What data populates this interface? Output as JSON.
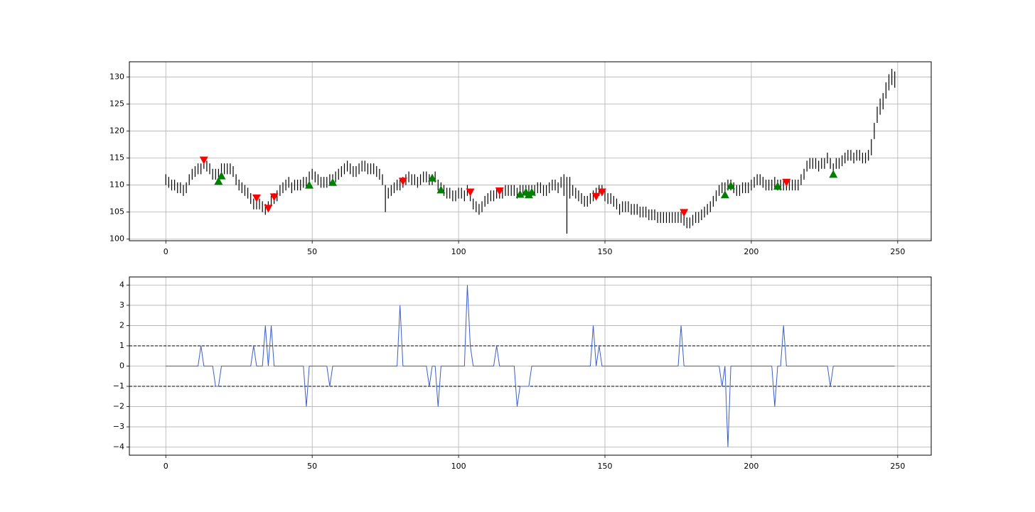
{
  "chart_data": [
    {
      "type": "ohlc",
      "grid": true,
      "color": "#000000",
      "xlim": [
        -12.45,
        261.45
      ],
      "ylim": [
        99.7,
        132.8
      ],
      "xticks": [
        0,
        50,
        100,
        150,
        200,
        250
      ],
      "yticks": [
        100,
        105,
        110,
        115,
        120,
        125,
        130
      ],
      "high": [
        112,
        111.5,
        111,
        111,
        110.5,
        110.5,
        110,
        110.5,
        112,
        113,
        113.5,
        114,
        114,
        115,
        114.5,
        114,
        113,
        113,
        113,
        114,
        114,
        114,
        114,
        113.5,
        112,
        111,
        110.5,
        110,
        109.5,
        108.5,
        107.5,
        107.5,
        107.5,
        107,
        106.5,
        107,
        108,
        108.5,
        109,
        110,
        110.5,
        111,
        111.5,
        110.5,
        111,
        111,
        111,
        111.5,
        111.5,
        112.5,
        113,
        112.5,
        112,
        111.5,
        111.5,
        111.5,
        112,
        112,
        112.5,
        113,
        113.5,
        114,
        114.5,
        114,
        113.5,
        113.5,
        114,
        114.5,
        114.5,
        114,
        114,
        114,
        113.5,
        113,
        112,
        110,
        109.5,
        110,
        110.5,
        111,
        111,
        111.5,
        112,
        112.5,
        112,
        112,
        111.5,
        112,
        112.5,
        112.5,
        112,
        112,
        112.5,
        111,
        110.5,
        110,
        109.5,
        109.5,
        109,
        109,
        109.5,
        109.5,
        109,
        110,
        109,
        107.5,
        107,
        106.5,
        107,
        108,
        108.5,
        109,
        109,
        109.5,
        109.5,
        109.5,
        110,
        110,
        110,
        110,
        109.5,
        110,
        110,
        110,
        110,
        110,
        110,
        110.5,
        110.5,
        110,
        110,
        110.5,
        111,
        111,
        110.5,
        111.5,
        112,
        111.5,
        111.5,
        110,
        109.5,
        109,
        108.5,
        108,
        108,
        108.5,
        109,
        109.5,
        110,
        110,
        109,
        108.5,
        108.5,
        108,
        107.5,
        106.5,
        107,
        107,
        107,
        106.5,
        106.5,
        106.5,
        106,
        106,
        106,
        105.5,
        105.5,
        105.5,
        105,
        105,
        105,
        105,
        105,
        105,
        105,
        105,
        105,
        104.5,
        104,
        104,
        104.5,
        105,
        105,
        105.5,
        106,
        106.5,
        107,
        108,
        109,
        110,
        110.5,
        110.5,
        111,
        111,
        110.5,
        110,
        110,
        110.5,
        110.5,
        110.5,
        111,
        111.5,
        112,
        112,
        111.5,
        111,
        111,
        111,
        111.5,
        111,
        111,
        111,
        111,
        111,
        111,
        111,
        111,
        112,
        113,
        114.5,
        115,
        115,
        115,
        114.5,
        115,
        115,
        116,
        115,
        114,
        115,
        115,
        115.5,
        116,
        116.5,
        116.5,
        116,
        116.5,
        116.5,
        116,
        116,
        116.5,
        118.5,
        121.5,
        124.5,
        126,
        127,
        129,
        130.5,
        131.5,
        131
      ],
      "low": [
        110,
        109.5,
        109,
        109,
        108.5,
        108.5,
        108,
        108.5,
        110,
        111,
        111.5,
        112,
        112,
        113,
        112.5,
        112,
        111,
        111,
        111,
        112,
        112,
        112,
        112,
        111.5,
        110,
        109,
        108.5,
        108,
        107.5,
        106.5,
        105.5,
        105.5,
        105.5,
        105,
        104.5,
        105,
        106,
        106.5,
        107,
        108,
        108.5,
        109,
        109.5,
        108.5,
        109,
        109,
        109,
        109.5,
        109.5,
        110.5,
        111,
        110.5,
        110,
        109.5,
        109.5,
        109.5,
        110,
        110,
        110.5,
        111,
        111.5,
        112,
        112.5,
        112,
        111.5,
        111.5,
        112,
        112.5,
        112.5,
        112,
        112,
        112,
        111.5,
        111,
        110,
        105,
        107.5,
        108,
        108.5,
        109,
        109,
        109.5,
        110,
        110.5,
        110,
        110,
        109.5,
        110,
        110.5,
        110.5,
        110,
        110,
        110.5,
        109,
        108.5,
        108,
        107.5,
        107.5,
        107,
        107,
        107.5,
        107.5,
        107,
        108,
        107,
        105.5,
        105,
        104.5,
        105,
        106,
        106.5,
        107,
        107,
        107.5,
        107.5,
        107.5,
        108,
        108,
        108,
        108,
        107.5,
        108,
        108,
        108,
        108,
        108,
        108,
        108.5,
        108.5,
        108,
        108,
        108.5,
        109,
        109,
        108.5,
        109.5,
        108,
        101,
        107.5,
        108,
        107.5,
        107,
        106.5,
        106,
        106,
        106.5,
        107,
        107.5,
        108,
        108,
        107,
        106.5,
        106.5,
        106,
        105.5,
        104.5,
        105,
        105,
        105,
        104.5,
        104.5,
        104.5,
        104,
        104,
        104,
        103.5,
        103.5,
        103.5,
        103,
        103,
        103,
        103,
        103,
        103,
        103,
        103,
        103,
        102.5,
        102,
        102,
        102.5,
        103,
        103,
        103.5,
        104,
        104.5,
        105,
        106,
        107,
        108,
        108.5,
        108.5,
        109,
        109,
        108.5,
        108,
        108,
        108.5,
        108.5,
        108.5,
        109,
        109.5,
        110,
        110,
        109.5,
        109,
        109,
        109,
        109.5,
        109,
        109,
        109,
        109,
        109,
        109,
        109,
        109,
        110,
        111,
        112.5,
        113,
        113,
        113,
        112.5,
        113,
        113,
        114,
        113,
        112,
        113,
        113,
        113.5,
        114,
        114.5,
        114.5,
        114,
        114.5,
        114.5,
        114,
        114,
        114.5,
        115.5,
        118.5,
        121.5,
        123,
        124,
        126,
        127.5,
        128.5,
        128
      ],
      "buy": {
        "color": "#008000",
        "x": [
          18,
          19,
          49,
          57,
          91,
          94,
          121,
          123,
          124,
          125,
          191,
          193,
          209,
          228
        ],
        "y": [
          110.7,
          111.7,
          110,
          110.5,
          111.3,
          109.1,
          108.3,
          108.7,
          108.2,
          108.7,
          108.2,
          109.9,
          109.8,
          112
        ]
      },
      "sell": {
        "color": "#ff0000",
        "x": [
          13,
          31,
          35,
          37,
          81,
          104,
          114,
          147,
          149,
          177,
          212
        ],
        "y": [
          114.6,
          107.6,
          105.7,
          107.8,
          110.7,
          108.7,
          108.9,
          107.9,
          108.7,
          104.9,
          110.5
        ]
      }
    },
    {
      "type": "line",
      "grid": true,
      "color": "#3a5fcd",
      "xlim": [
        -12.45,
        261.45
      ],
      "ylim": [
        -4.4,
        4.4
      ],
      "xticks": [
        0,
        50,
        100,
        150,
        200,
        250
      ],
      "yticks": [
        {
          "value": -4,
          "label": "−4"
        },
        {
          "value": -3,
          "label": "−3"
        },
        {
          "value": -2,
          "label": "−2"
        },
        {
          "value": -1,
          "label": "−1"
        },
        0,
        1,
        2,
        3,
        4
      ],
      "hlines": [
        1,
        -1
      ],
      "values": [
        0,
        0,
        0,
        0,
        0,
        0,
        0,
        0,
        0,
        0,
        0,
        0,
        1,
        0,
        0,
        0,
        0,
        -1,
        -1,
        0,
        0,
        0,
        0,
        0,
        0,
        0,
        0,
        0,
        0,
        0,
        1,
        0,
        0,
        0,
        2,
        0,
        2,
        0,
        0,
        0,
        0,
        0,
        0,
        0,
        0,
        0,
        0,
        0,
        -2,
        0,
        0,
        0,
        0,
        0,
        0,
        0,
        -1,
        0,
        0,
        0,
        0,
        0,
        0,
        0,
        0,
        0,
        0,
        0,
        0,
        0,
        0,
        0,
        0,
        0,
        0,
        0,
        0,
        0,
        0,
        0,
        3,
        0,
        0,
        0,
        0,
        0,
        0,
        0,
        0,
        0,
        -1,
        0,
        0,
        -2,
        0,
        0,
        0,
        0,
        0,
        0,
        0,
        0,
        0,
        4,
        1,
        0,
        0,
        0,
        0,
        0,
        0,
        0,
        0,
        1,
        0,
        0,
        0,
        0,
        0,
        0,
        -2,
        -1,
        -1,
        -1,
        -1,
        0,
        0,
        0,
        0,
        0,
        0,
        0,
        0,
        0,
        0,
        0,
        0,
        0,
        0,
        0,
        0,
        0,
        0,
        0,
        0,
        0,
        2,
        0,
        1,
        0,
        0,
        0,
        0,
        0,
        0,
        0,
        0,
        0,
        0,
        0,
        0,
        0,
        0,
        0,
        0,
        0,
        0,
        0,
        0,
        0,
        0,
        0,
        0,
        0,
        0,
        0,
        2,
        0,
        0,
        0,
        0,
        0,
        0,
        0,
        0,
        0,
        0,
        0,
        0,
        0,
        -1,
        0,
        -4,
        0,
        0,
        0,
        0,
        0,
        0,
        0,
        0,
        0,
        0,
        0,
        0,
        0,
        0,
        0,
        -2,
        0,
        0,
        2,
        0,
        0,
        0,
        0,
        0,
        0,
        0,
        0,
        0,
        0,
        0,
        0,
        0,
        0,
        0,
        -1,
        0,
        0,
        0,
        0,
        0,
        0,
        0,
        0,
        0,
        0,
        0,
        0,
        0,
        0,
        0,
        0,
        0,
        0,
        0,
        0,
        0,
        0
      ]
    }
  ]
}
